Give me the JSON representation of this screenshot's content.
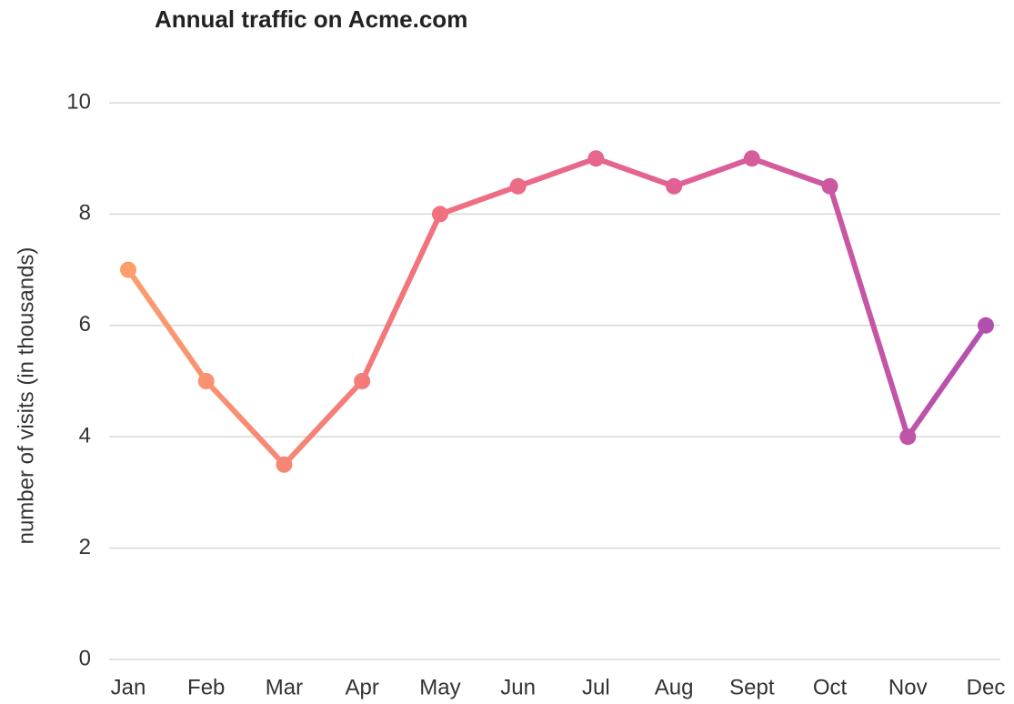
{
  "chart_data": {
    "type": "line",
    "title": "Annual traffic on Acme.com",
    "y_label": "number of visits (in thousands)",
    "categories": [
      "Jan",
      "Feb",
      "Mar",
      "Apr",
      "May",
      "Jun",
      "Jul",
      "Aug",
      "Sept",
      "Oct",
      "Nov",
      "Dec"
    ],
    "values": [
      7,
      5,
      3.5,
      5,
      8,
      8.5,
      9,
      8.5,
      9,
      8.5,
      4,
      6
    ],
    "gradient": [
      "#fb9e6c",
      "#f2737c",
      "#e05f96",
      "#b24fae"
    ],
    "ylim": [
      0,
      10
    ],
    "yticks": [
      0,
      2,
      4,
      6,
      8,
      10
    ],
    "grid": true
  }
}
